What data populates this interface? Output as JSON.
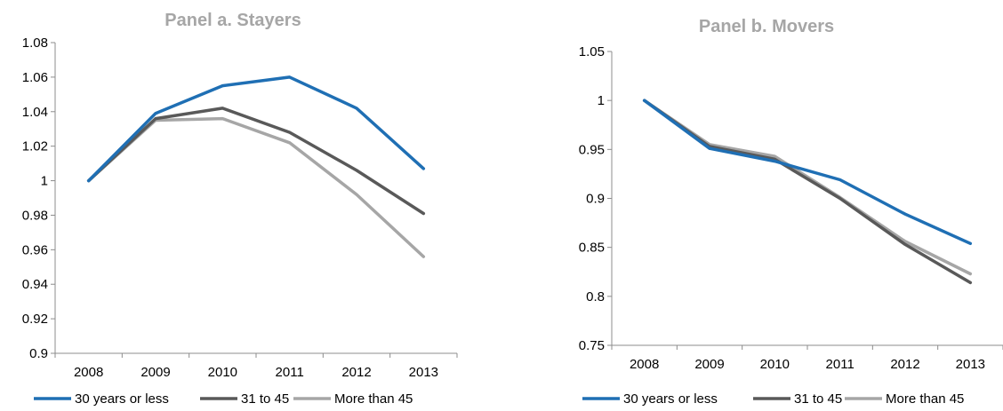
{
  "chart_data": [
    {
      "type": "line",
      "title": "Panel a. Stayers",
      "categories": [
        "2008",
        "2009",
        "2010",
        "2011",
        "2012",
        "2013"
      ],
      "ylim": [
        0.9,
        1.08
      ],
      "yticks": [
        "0.9",
        "0.92",
        "0.94",
        "0.96",
        "0.98",
        "1",
        "1.02",
        "1.04",
        "1.06",
        "1.08"
      ],
      "grid": false,
      "legend_position": "bottom",
      "series": [
        {
          "name": "30 years or less",
          "color": "#1f6fb4",
          "values": [
            1.0,
            1.039,
            1.055,
            1.06,
            1.042,
            1.007
          ]
        },
        {
          "name": "31 to 45",
          "color": "#595959",
          "values": [
            1.0,
            1.036,
            1.042,
            1.028,
            1.006,
            0.981
          ]
        },
        {
          "name": "More than 45",
          "color": "#a6a6a6",
          "values": [
            1.0,
            1.035,
            1.036,
            1.022,
            0.992,
            0.956
          ]
        }
      ]
    },
    {
      "type": "line",
      "title": "Panel b. Movers",
      "categories": [
        "2008",
        "2009",
        "2010",
        "2011",
        "2012",
        "2013"
      ],
      "ylim": [
        0.75,
        1.05
      ],
      "yticks": [
        "0.75",
        "0.8",
        "0.85",
        "0.9",
        "0.95",
        "1",
        "1.05"
      ],
      "grid": false,
      "legend_position": "bottom",
      "series": [
        {
          "name": "30 years or less",
          "color": "#1f6fb4",
          "values": [
            1.0,
            0.951,
            0.938,
            0.919,
            0.884,
            0.854
          ]
        },
        {
          "name": "31 to 45",
          "color": "#595959",
          "values": [
            1.0,
            0.953,
            0.94,
            0.9,
            0.853,
            0.814
          ]
        },
        {
          "name": "More than 45",
          "color": "#a6a6a6",
          "values": [
            1.0,
            0.955,
            0.943,
            0.901,
            0.856,
            0.823
          ]
        }
      ]
    }
  ]
}
